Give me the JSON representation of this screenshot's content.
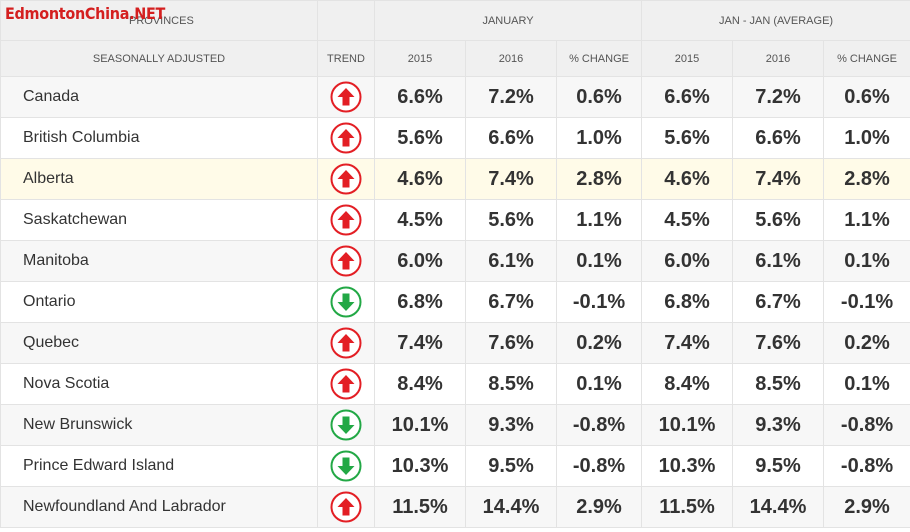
{
  "watermark": "EdmontonChina.NET",
  "header": {
    "provinces": "PROVINCES",
    "group1": "JANUARY",
    "group2": "JAN - JAN (AVERAGE)",
    "seasonally_adjusted": "SEASONALLY ADJUSTED",
    "trend": "TREND",
    "col_2015": "2015",
    "col_2016": "2016",
    "col_change": "% CHANGE"
  },
  "colors": {
    "up": "#e31e24",
    "down": "#22a845",
    "highlight_row": "#fffbe8"
  },
  "chart_data": {
    "type": "table",
    "columns": [
      "PROVINCES",
      "TREND",
      "JANUARY 2015",
      "JANUARY 2016",
      "JANUARY % CHANGE",
      "JAN - JAN (AVERAGE) 2015",
      "JAN - JAN (AVERAGE) 2016",
      "JAN - JAN (AVERAGE) % CHANGE"
    ],
    "rows": [
      {
        "province": "Canada",
        "trend": "up",
        "jan_2015": "6.6%",
        "jan_2016": "7.2%",
        "jan_change": "0.6%",
        "avg_2015": "6.6%",
        "avg_2016": "7.2%",
        "avg_change": "0.6%"
      },
      {
        "province": "British Columbia",
        "trend": "up",
        "jan_2015": "5.6%",
        "jan_2016": "6.6%",
        "jan_change": "1.0%",
        "avg_2015": "5.6%",
        "avg_2016": "6.6%",
        "avg_change": "1.0%"
      },
      {
        "province": "Alberta",
        "trend": "up",
        "highlight": true,
        "jan_2015": "4.6%",
        "jan_2016": "7.4%",
        "jan_change": "2.8%",
        "avg_2015": "4.6%",
        "avg_2016": "7.4%",
        "avg_change": "2.8%"
      },
      {
        "province": "Saskatchewan",
        "trend": "up",
        "jan_2015": "4.5%",
        "jan_2016": "5.6%",
        "jan_change": "1.1%",
        "avg_2015": "4.5%",
        "avg_2016": "5.6%",
        "avg_change": "1.1%"
      },
      {
        "province": "Manitoba",
        "trend": "up",
        "jan_2015": "6.0%",
        "jan_2016": "6.1%",
        "jan_change": "0.1%",
        "avg_2015": "6.0%",
        "avg_2016": "6.1%",
        "avg_change": "0.1%"
      },
      {
        "province": "Ontario",
        "trend": "down",
        "jan_2015": "6.8%",
        "jan_2016": "6.7%",
        "jan_change": "-0.1%",
        "avg_2015": "6.8%",
        "avg_2016": "6.7%",
        "avg_change": "-0.1%"
      },
      {
        "province": "Quebec",
        "trend": "up",
        "jan_2015": "7.4%",
        "jan_2016": "7.6%",
        "jan_change": "0.2%",
        "avg_2015": "7.4%",
        "avg_2016": "7.6%",
        "avg_change": "0.2%"
      },
      {
        "province": "Nova Scotia",
        "trend": "up",
        "jan_2015": "8.4%",
        "jan_2016": "8.5%",
        "jan_change": "0.1%",
        "avg_2015": "8.4%",
        "avg_2016": "8.5%",
        "avg_change": "0.1%"
      },
      {
        "province": "New Brunswick",
        "trend": "down",
        "jan_2015": "10.1%",
        "jan_2016": "9.3%",
        "jan_change": "-0.8%",
        "avg_2015": "10.1%",
        "avg_2016": "9.3%",
        "avg_change": "-0.8%"
      },
      {
        "province": "Prince Edward Island",
        "trend": "down",
        "jan_2015": "10.3%",
        "jan_2016": "9.5%",
        "jan_change": "-0.8%",
        "avg_2015": "10.3%",
        "avg_2016": "9.5%",
        "avg_change": "-0.8%"
      },
      {
        "province": "Newfoundland And Labrador",
        "trend": "up",
        "jan_2015": "11.5%",
        "jan_2016": "14.4%",
        "jan_change": "2.9%",
        "avg_2015": "11.5%",
        "avg_2016": "14.4%",
        "avg_change": "2.9%"
      }
    ]
  }
}
